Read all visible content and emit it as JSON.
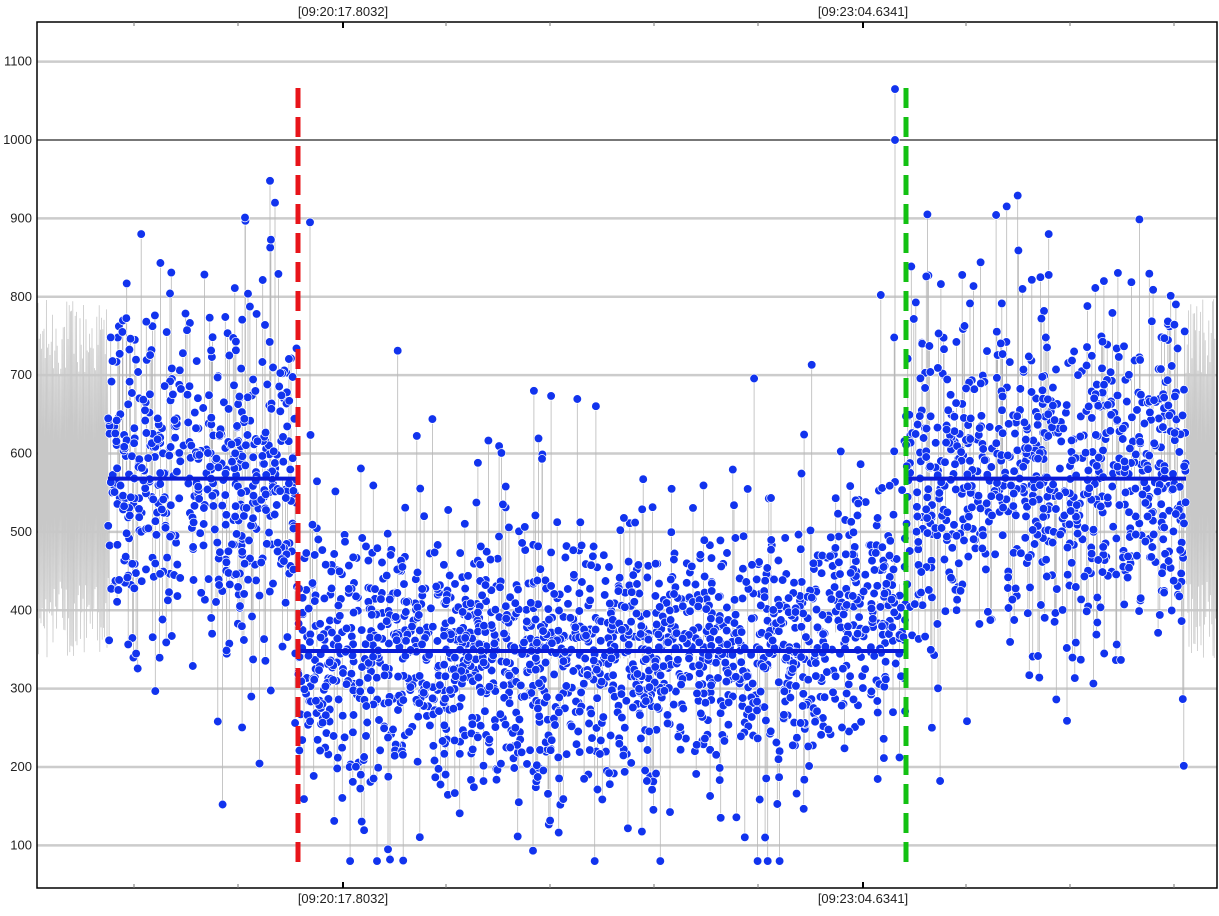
{
  "chart_data": {
    "type": "scatter",
    "title": "",
    "xlabel": "",
    "ylabel": "",
    "ylim": [
      45,
      1150
    ],
    "y_ticks": [
      100,
      200,
      300,
      400,
      500,
      600,
      700,
      800,
      900,
      1000,
      1100
    ],
    "y_tick_labels": [
      "100",
      "200",
      "300",
      "400",
      "500",
      "600",
      "700",
      "800",
      "900",
      "1000",
      "1100"
    ],
    "x_time_labels": [
      "[09:20:17.8032]",
      "[09:23:04.6341]"
    ],
    "grid": true,
    "emphasized_gridline": 1000,
    "regions": [
      {
        "phase": "before",
        "mean": 568
      },
      {
        "phase": "during",
        "mean": 348
      },
      {
        "phase": "after",
        "mean": 568
      }
    ],
    "markers": [
      {
        "color": "#e8141a",
        "style": "dashed"
      },
      {
        "color": "#13c113",
        "style": "dashed"
      }
    ],
    "colors": {
      "points": "#1133ee",
      "point_edge": "#ffffff",
      "mean_line": "#0a1bd6",
      "background_trace": "#c8c8c8",
      "gridline": "#cccccc",
      "frame": "#000000"
    }
  }
}
